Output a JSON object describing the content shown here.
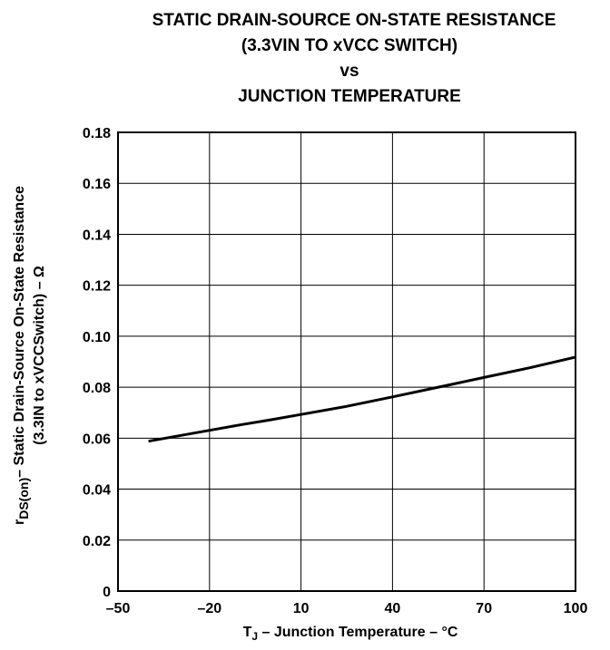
{
  "chart_data": {
    "type": "line",
    "title_lines": [
      "STATIC DRAIN-SOURCE ON-STATE RESISTANCE",
      "(3.3VIN TO xVCC SWITCH)",
      "vs",
      "JUNCTION TEMPERATURE"
    ],
    "xlabel": {
      "prefix": "T",
      "subscript": "J",
      "suffix": " – Junction Temperature – °C"
    },
    "ylabel": {
      "line1_prefix": "r",
      "line1_subscript": "DS(on)",
      "line1_suffix": "– Static Drain-Source On-State Resistance",
      "line2": "(3.3IN to xVCCSwitch) – Ω"
    },
    "xlim": [
      -50,
      100
    ],
    "ylim": [
      0,
      0.18
    ],
    "x_ticks": [
      -50,
      -20,
      10,
      40,
      70,
      100
    ],
    "x_tick_labels": [
      "–50",
      "–20",
      "10",
      "40",
      "70",
      "100"
    ],
    "y_ticks": [
      0,
      0.02,
      0.04,
      0.06,
      0.08,
      0.1,
      0.12,
      0.14,
      0.16,
      0.18
    ],
    "y_tick_labels": [
      "0",
      "0.02",
      "0.04",
      "0.06",
      "0.08",
      "0.10",
      "0.12",
      "0.14",
      "0.16",
      "0.18"
    ],
    "grid": true,
    "series": [
      {
        "x": [
          -40,
          -25,
          -10,
          0,
          10,
          25,
          40,
          55,
          70,
          85,
          100
        ],
        "y": [
          0.0588,
          0.062,
          0.0652,
          0.0672,
          0.0693,
          0.0725,
          0.0762,
          0.08,
          0.0838,
          0.0876,
          0.0918
        ]
      }
    ],
    "colors": {
      "line": "#000000",
      "grid": "#000000",
      "background": "#ffffff"
    }
  }
}
